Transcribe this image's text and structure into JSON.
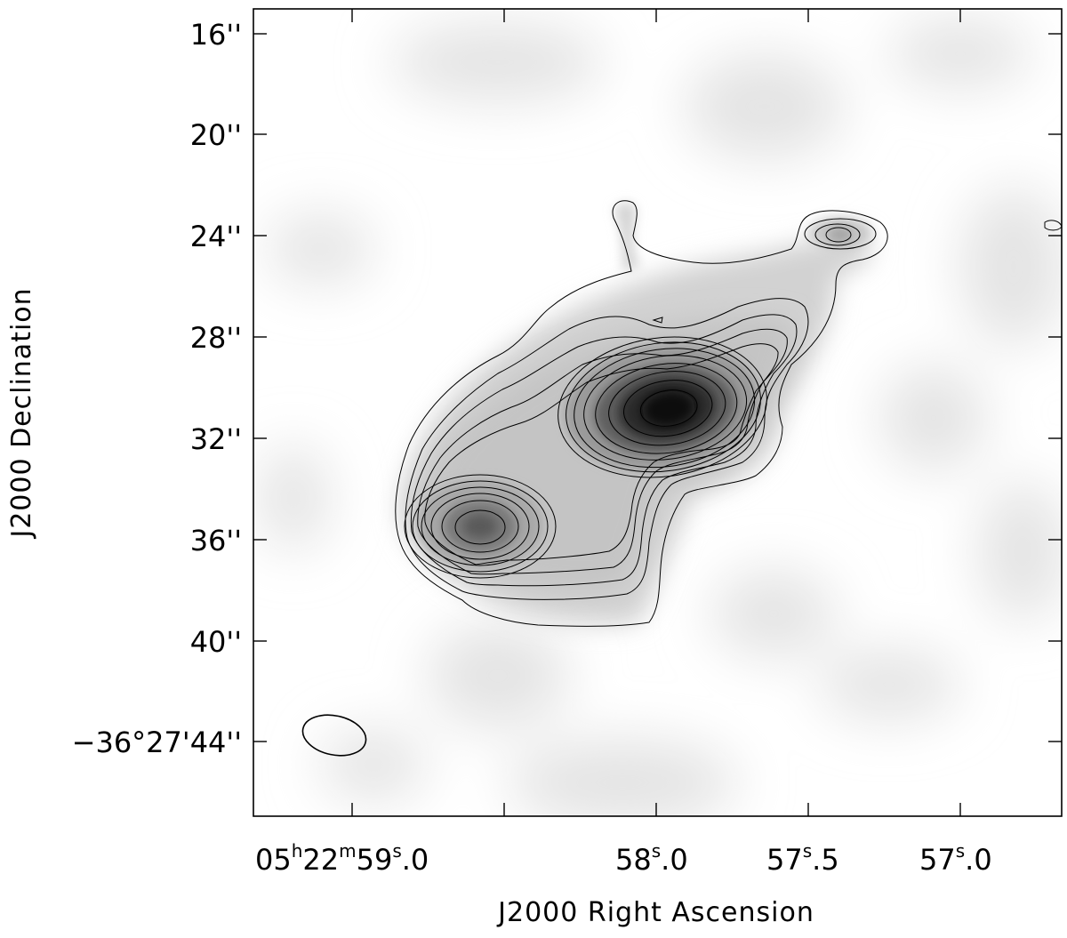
{
  "x_axis": {
    "title": "J2000 Right Ascension",
    "ticks": [
      {
        "main": "05",
        "sup1": "h",
        "mid1": "22",
        "sup2": "m",
        "mid2": "59",
        "sup3": "s",
        "end": ".0"
      },
      {
        "main": "58",
        "sup3": "s",
        "end": ".0"
      },
      {
        "main": "57",
        "sup3": "s",
        "end": ".5"
      },
      {
        "main": "57",
        "sup3": "s",
        "end": ".0"
      }
    ]
  },
  "y_axis": {
    "title": "J2000 Declination",
    "ticks": [
      "16''",
      "20''",
      "24''",
      "28''",
      "32''",
      "36''",
      "40''",
      "−36°27'44''"
    ]
  },
  "beam_ellipse": "restoring beam",
  "colors": {
    "ink": "#000000",
    "background": "#ffffff"
  }
}
